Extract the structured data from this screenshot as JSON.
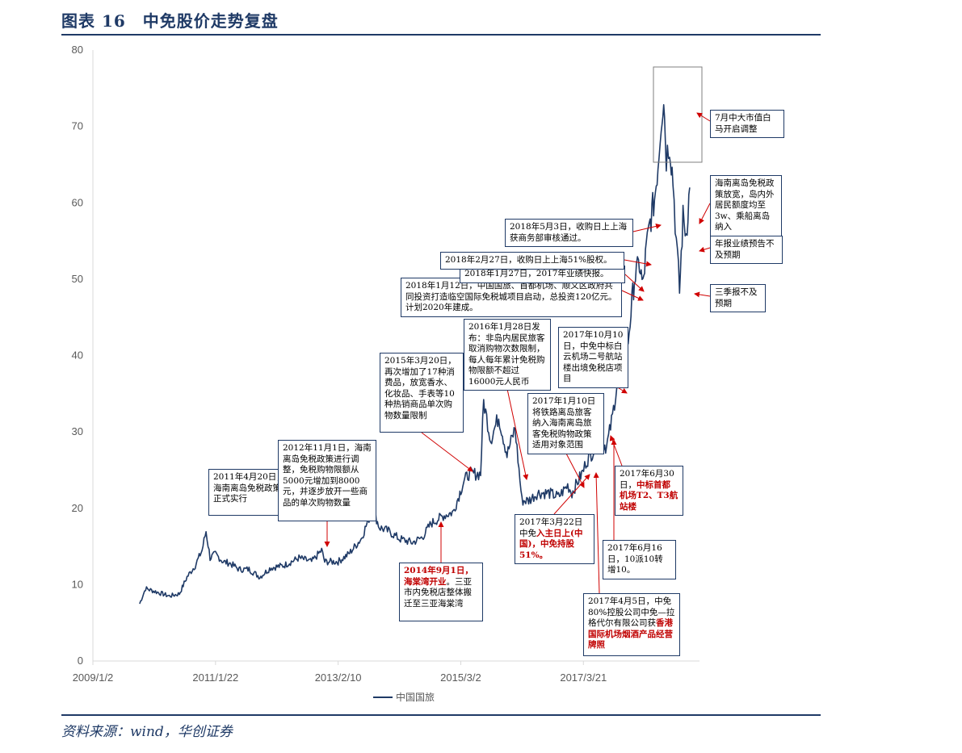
{
  "header": {
    "title": "图表 16　中免股价走势复盘"
  },
  "footer": {
    "source": "资料来源：wind，华创证券"
  },
  "chart_data": {
    "type": "line",
    "x_ticks": [
      "2009/1/2",
      "2011/1/22",
      "2013/2/10",
      "2015/3/2",
      "2017/3/21"
    ],
    "y_ticks": [
      "0",
      "10",
      "20",
      "30",
      "40",
      "50",
      "60",
      "70",
      "80"
    ],
    "ylim": [
      0,
      80
    ],
    "legend": {
      "position": "bottom",
      "entries": [
        "中国国旅"
      ]
    },
    "series": [
      {
        "name": "中国国旅",
        "color": "#1f3a66",
        "points": [
          [
            "2009/10/15",
            7.5
          ],
          [
            "2009/11/20",
            9.5
          ],
          [
            "2010/2/1",
            9.0
          ],
          [
            "2010/4/15",
            8.5
          ],
          [
            "2010/6/15",
            8.8
          ],
          [
            "2010/8/1",
            11.0
          ],
          [
            "2010/9/20",
            12.5
          ],
          [
            "2010/11/1",
            14.5
          ],
          [
            "2010/11/25",
            17.0
          ],
          [
            "2010/12/20",
            13.5
          ],
          [
            "2011/1/22",
            14.0
          ],
          [
            "2011/3/10",
            13.0
          ],
          [
            "2011/4/20",
            12.8
          ],
          [
            "2011/6/15",
            12.0
          ],
          [
            "2011/8/15",
            12.0
          ],
          [
            "2011/10/20",
            11.0
          ],
          [
            "2011/12/25",
            12.2
          ],
          [
            "2012/3/15",
            12.5
          ],
          [
            "2012/6/15",
            13.5
          ],
          [
            "2012/9/1",
            13.0
          ],
          [
            "2012/11/1",
            14.5
          ],
          [
            "2012/11/20",
            13.0
          ],
          [
            "2013/2/10",
            13.0
          ],
          [
            "2013/4/15",
            14.0
          ],
          [
            "2013/7/1",
            16.0
          ],
          [
            "2013/9/10",
            20.0
          ],
          [
            "2013/10/20",
            17.5
          ],
          [
            "2013/12/15",
            17.0
          ],
          [
            "2014/2/20",
            16.0
          ],
          [
            "2014/5/10",
            15.5
          ],
          [
            "2014/7/10",
            16.2
          ],
          [
            "2014/9/1",
            18.0
          ],
          [
            "2014/11/15",
            19.0
          ],
          [
            "2015/1/15",
            19.5
          ],
          [
            "2015/3/20",
            23.5
          ],
          [
            "2015/4/20",
            24.5
          ],
          [
            "2015/7/1",
            24.5
          ],
          [
            "2015/7/20",
            34.0
          ],
          [
            "2015/9/1",
            29.0
          ],
          [
            "2015/10/20",
            32.0
          ],
          [
            "2015/12/10",
            27.0
          ],
          [
            "2016/1/28",
            30.5
          ],
          [
            "2016/3/10",
            21.0
          ],
          [
            "2016/4/20",
            21.0
          ],
          [
            "2016/6/15",
            22.0
          ],
          [
            "2016/8/20",
            22.0
          ],
          [
            "2016/10/20",
            21.5
          ],
          [
            "2016/12/15",
            23.0
          ],
          [
            "2017/1/10",
            22.0
          ],
          [
            "2017/3/22",
            25.0
          ],
          [
            "2017/4/5",
            26.0
          ],
          [
            "2017/5/20",
            27.5
          ],
          [
            "2017/6/16",
            28.5
          ],
          [
            "2017/6/30",
            29.0
          ],
          [
            "2017/8/10",
            28.0
          ],
          [
            "2017/9/15",
            32.0
          ],
          [
            "2017/10/10",
            36.0
          ],
          [
            "2017/11/15",
            38.0
          ],
          [
            "2017/12/20",
            42.0
          ],
          [
            "2018/1/12",
            47.0
          ],
          [
            "2018/1/27",
            50.0
          ],
          [
            "2018/2/27",
            52.0
          ],
          [
            "2018/3/20",
            49.0
          ],
          [
            "2018/4/10",
            54.0
          ],
          [
            "2018/5/3",
            57.5
          ],
          [
            "2018/5/30",
            60.5
          ],
          [
            "2018/6/20",
            65.0
          ],
          [
            "2018/7/10",
            71.0
          ],
          [
            "2018/7/25",
            74.0
          ],
          [
            "2018/8/10",
            66.0
          ],
          [
            "2018/8/30",
            68.0
          ],
          [
            "2018/9/20",
            63.0
          ],
          [
            "2018/10/10",
            55.0
          ],
          [
            "2018/10/30",
            48.5
          ],
          [
            "2018/11/20",
            58.0
          ],
          [
            "2018/12/10",
            56.0
          ],
          [
            "2018/12/31",
            62.0
          ]
        ]
      }
    ],
    "annotations": [
      {
        "date": "2011/4/20",
        "parts": [
          {
            "t": "2011年4月20日，海南离岛免税政策正式实行",
            "red": false
          }
        ]
      },
      {
        "date": "2012/11/1",
        "parts": [
          {
            "t": "2012年11月1日，海南离岛免税政策进行调整，免税购物限额从5000元增加到8000元，并逐步放开一些商品的单次购物数量",
            "red": false
          }
        ]
      },
      {
        "date": "2014/9/1",
        "parts": [
          {
            "t": "2014年9月1日，海棠湾开业",
            "red": true
          },
          {
            "t": "。三亚市内免税店整体搬迁至三亚海棠湾",
            "red": false
          }
        ]
      },
      {
        "date": "2015/3/20",
        "parts": [
          {
            "t": "2015年3月20日，再次增加了17种消费品，放宽香水、化妆品、手表等10种热销商品单次购物数量限制",
            "red": false
          }
        ]
      },
      {
        "date": "2016/1/28",
        "parts": [
          {
            "t": "2016年1月28日发布：非岛内居民旅客取消购物次数限制，每人每年累计免税购物限额不超过16000元人民币",
            "red": false
          }
        ]
      },
      {
        "date": "2017/1/10",
        "parts": [
          {
            "t": "2017年1月10日将铁路离岛旅客纳入海南离岛旅客免税购物政策适用对象范围",
            "red": false
          }
        ]
      },
      {
        "date": "2017/3/22",
        "parts": [
          {
            "t": "2017年3月22日中免",
            "red": false
          },
          {
            "t": "入主日上(中国)，中免持股51%。",
            "red": true
          }
        ]
      },
      {
        "date": "2017/4/5",
        "parts": [
          {
            "t": "2017年4月5日，中免80%控股公司中免—拉格代尔有限公司获",
            "red": false
          },
          {
            "t": "香港国际机场烟酒产品经营牌照",
            "red": true
          }
        ]
      },
      {
        "date": "2017/6/16",
        "parts": [
          {
            "t": "2017年6月16日，10派10转增10。",
            "red": false
          }
        ]
      },
      {
        "date": "2017/6/30",
        "parts": [
          {
            "t": "2017年6月30日，",
            "red": false
          },
          {
            "t": "中标首都机场T2、T3航站楼",
            "red": true
          }
        ]
      },
      {
        "date": "2017/10/10",
        "parts": [
          {
            "t": "2017年10月10日，中免中标白云机场二号航站楼出境免税店项目",
            "red": false
          }
        ]
      },
      {
        "date": "2018/1/12",
        "parts": [
          {
            "t": "2018年1月12日，中国国旅、首都机场、顺义区政府共同投资打造临空国际免税城项目启动，总投资120亿元。计划2020年建成。",
            "red": false
          }
        ]
      },
      {
        "date": "2018/1/27",
        "parts": [
          {
            "t": "2018年1月27日，2017年业绩快报。",
            "red": false
          }
        ]
      },
      {
        "date": "2018/2/27",
        "parts": [
          {
            "t": "2018年2月27日，收购日上上海51%股权。",
            "red": false
          }
        ]
      },
      {
        "date": "2018/5/3",
        "parts": [
          {
            "t": "2018年5月3日，收购日上上海获商务部审核通过。",
            "red": false
          }
        ]
      },
      {
        "date": "2018/7",
        "parts": [
          {
            "t": "7月中大市值白马开启调整",
            "red": false
          }
        ]
      },
      {
        "date": "2018/10",
        "parts": [
          {
            "t": "海南离岛免税政策放宽，岛内外居民额度均至3w、乘船离岛纳入",
            "red": false
          }
        ]
      },
      {
        "date": "2018/10",
        "parts": [
          {
            "t": "年报业绩预告不及预期",
            "red": false
          }
        ]
      },
      {
        "date": "2018/10/30",
        "parts": [
          {
            "t": "三季报不及预期",
            "red": false
          }
        ]
      }
    ]
  }
}
